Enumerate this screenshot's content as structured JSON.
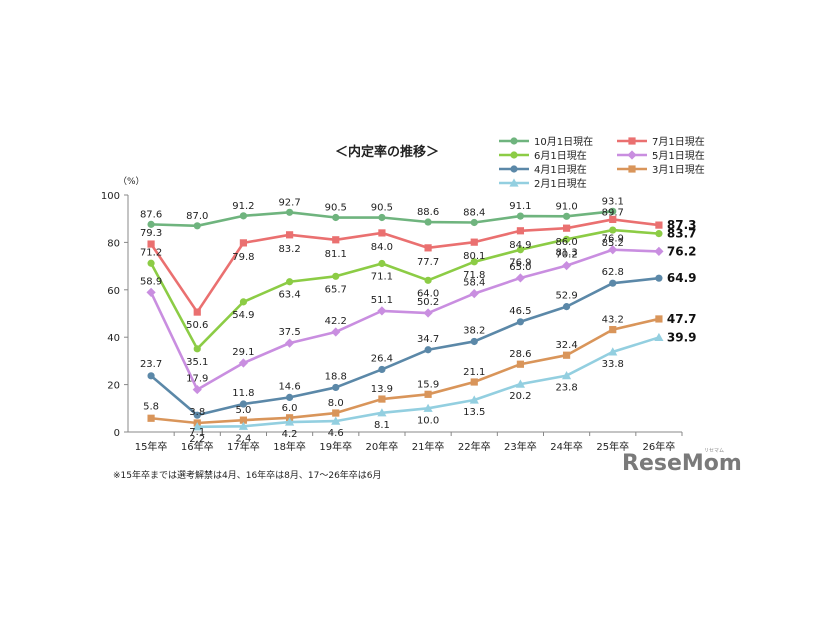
{
  "chart_data": {
    "type": "line",
    "title": "＜内定率の推移＞",
    "unit_label": "（%）",
    "categories": [
      "15年卒",
      "16年卒",
      "17年卒",
      "18年卒",
      "19年卒",
      "20年卒",
      "21年卒",
      "22年卒",
      "23年卒",
      "24年卒",
      "25年卒",
      "26年卒"
    ],
    "ylim": [
      0,
      100
    ],
    "yticks": [
      0,
      20,
      40,
      60,
      80,
      100
    ],
    "grid": false,
    "legend_position": "top-right",
    "series": [
      {
        "name": "10月1日現在",
        "color": "#6fb47e",
        "marker": "circle",
        "values": [
          87.6,
          87.0,
          91.2,
          92.7,
          90.5,
          90.5,
          88.6,
          88.4,
          91.1,
          91.0,
          93.1,
          null
        ]
      },
      {
        "name": "7月1日現在",
        "color": "#ea7070",
        "marker": "square",
        "values": [
          79.3,
          50.6,
          79.8,
          83.2,
          81.1,
          84.0,
          77.7,
          80.1,
          84.9,
          86.0,
          89.7,
          87.3
        ]
      },
      {
        "name": "6月1日現在",
        "color": "#8ccc45",
        "marker": "circle",
        "values": [
          71.2,
          35.1,
          54.9,
          63.4,
          65.7,
          71.1,
          64.0,
          71.8,
          76.9,
          81.3,
          85.2,
          83.7
        ]
      },
      {
        "name": "5月1日現在",
        "color": "#c98ee0",
        "marker": "diamond",
        "values": [
          58.9,
          17.9,
          29.1,
          37.5,
          42.2,
          51.1,
          50.2,
          58.4,
          65.0,
          70.2,
          76.9,
          76.2
        ]
      },
      {
        "name": "4月1日現在",
        "color": "#5b88a8",
        "marker": "circle",
        "values": [
          23.7,
          7.1,
          11.8,
          14.6,
          18.8,
          26.4,
          34.7,
          38.2,
          46.5,
          52.9,
          62.8,
          64.9
        ]
      },
      {
        "name": "3月1日現在",
        "color": "#d9955a",
        "marker": "square",
        "values": [
          5.8,
          3.8,
          5.0,
          6.0,
          8.0,
          13.9,
          15.9,
          21.1,
          28.6,
          32.4,
          43.2,
          47.7
        ]
      },
      {
        "name": "2月1日現在",
        "color": "#93cfe0",
        "marker": "triangle",
        "values": [
          null,
          2.2,
          2.4,
          4.2,
          4.6,
          8.1,
          10.0,
          13.5,
          20.2,
          23.8,
          33.8,
          39.9
        ]
      }
    ],
    "point_labels": {
      "10月1日現在": [
        "87.6",
        "87.0",
        "91.2",
        "92.7",
        "90.5",
        "90.5",
        "88.6",
        "88.4",
        "91.1",
        "91.0",
        "93.1",
        ""
      ],
      "7月1日現在": [
        "79.3",
        "50.6",
        "79.8",
        "83.2",
        "81.1",
        "84.0",
        "77.7",
        "80.1",
        "84.9",
        "86.0",
        "89.7",
        "87.3"
      ],
      "6月1日現在": [
        "71.2",
        "35.1",
        "54.9",
        "63.4",
        "65.7",
        "71.1",
        "64.0",
        "71.8",
        "76.9",
        "81.3",
        "85.2",
        "83.7"
      ],
      "5月1日現在": [
        "58.9",
        "17.9",
        "29.1",
        "37.5",
        "42.2",
        "51.1",
        "50.2",
        "58.4",
        "65.0",
        "70.2",
        "76.9",
        "76.2"
      ],
      "4月1日現在": [
        "23.7",
        "7.1",
        "11.8",
        "14.6",
        "18.8",
        "26.4",
        "34.7",
        "38.2",
        "46.5",
        "52.9",
        "62.8",
        "64.9"
      ],
      "3月1日現在": [
        "5.8",
        "3.8",
        "5.0",
        "6.0",
        "8.0",
        "13.9",
        "15.9",
        "21.1",
        "28.6",
        "32.4",
        "43.2",
        "47.7"
      ],
      "2月1日現在": [
        "",
        "2.2",
        "2.4",
        "4.2",
        "4.6",
        "8.1",
        "10.0",
        "13.5",
        "20.2",
        "23.8",
        "33.8",
        "39.9"
      ]
    },
    "footnote": "※15年卒までは選考解禁は4月、16年卒は8月、17～26年卒は6月"
  },
  "watermark": {
    "text": "ReseMom",
    "sub": "リセマム"
  }
}
